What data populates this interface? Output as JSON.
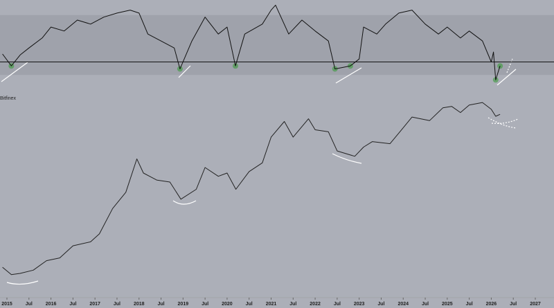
{
  "chart_data": [
    {
      "type": "line",
      "x": [
        2014.9,
        2015.1,
        2015.3,
        2015.5,
        2015.8,
        2016.0,
        2016.3,
        2016.6,
        2016.9,
        2017.2,
        2017.5,
        2017.8,
        2018.0,
        2018.2,
        2018.5,
        2018.8,
        2018.93,
        2019.2,
        2019.5,
        2019.8,
        2020.0,
        2020.19,
        2020.4,
        2020.8,
        2021.0,
        2021.1,
        2021.4,
        2021.7,
        2022.0,
        2022.3,
        2022.45,
        2022.8,
        2023.0,
        2023.1,
        2023.4,
        2023.6,
        2023.9,
        2024.2,
        2024.5,
        2024.8,
        2025.0,
        2025.3,
        2025.5,
        2025.8,
        2026.0,
        2026.05,
        2026.1,
        2026.2
      ],
      "values": [
        41,
        29,
        40,
        47,
        57,
        68,
        64,
        75,
        71,
        78,
        82,
        85,
        82,
        61,
        54,
        47,
        26,
        54,
        78,
        61,
        68,
        29,
        61,
        71,
        85,
        90,
        61,
        75,
        64,
        54,
        26,
        29,
        36,
        68,
        61,
        71,
        82,
        85,
        71,
        61,
        68,
        57,
        64,
        54,
        33,
        43,
        15,
        29
      ],
      "xlim": [
        2015,
        2027
      ],
      "ylim": [
        0,
        100
      ],
      "band": [
        20,
        80
      ],
      "hline": 33,
      "color": "#111111"
    },
    {
      "type": "line",
      "source_label": "Bitfinex",
      "log_scale": true,
      "x": [
        2014.9,
        2015.1,
        2015.3,
        2015.6,
        2015.9,
        2016.2,
        2016.5,
        2016.9,
        2017.1,
        2017.4,
        2017.7,
        2017.95,
        2018.1,
        2018.4,
        2018.7,
        2018.95,
        2019.3,
        2019.5,
        2019.8,
        2020.0,
        2020.2,
        2020.5,
        2020.8,
        2021.0,
        2021.3,
        2021.5,
        2021.85,
        2022.0,
        2022.3,
        2022.5,
        2022.9,
        2023.1,
        2023.3,
        2023.7,
        2023.95,
        2024.2,
        2024.6,
        2024.9,
        2025.1,
        2025.3,
        2025.5,
        2025.8,
        2026.0,
        2026.1,
        2026.2
      ],
      "values": [
        300,
        230,
        240,
        270,
        380,
        420,
        650,
        750,
        1000,
        2500,
        4500,
        15000,
        9000,
        7000,
        6500,
        3500,
        5000,
        11000,
        8000,
        9000,
        5000,
        9500,
        13000,
        33000,
        58000,
        33000,
        64000,
        43000,
        40000,
        20000,
        16500,
        23000,
        28000,
        26000,
        42000,
        68000,
        60000,
        95000,
        100000,
        80000,
        105000,
        115000,
        90000,
        70000,
        75000
      ],
      "xlim": [
        2015,
        2027
      ],
      "ylim": [
        100,
        200000
      ],
      "color": "#222222",
      "xticks": [
        2015,
        {
          "value": 2015.5,
          "label": "Jul"
        },
        2016,
        {
          "value": 2016.5,
          "label": "Jul"
        },
        2017,
        {
          "value": 2017.5,
          "label": "Jul"
        },
        2018,
        {
          "value": 2018.5,
          "label": "Jul"
        },
        2019,
        {
          "value": 2019.5,
          "label": "Jul"
        },
        2020,
        {
          "value": 2020.5,
          "label": "Jul"
        },
        2021,
        {
          "value": 2021.5,
          "label": "Jul"
        },
        2022,
        {
          "value": 2022.5,
          "label": "Jul"
        },
        2023,
        {
          "value": 2023.5,
          "label": "Jul"
        },
        2024,
        {
          "value": 2024.5,
          "label": "Jul"
        },
        2025,
        {
          "value": 2025.5,
          "label": "Jul"
        },
        2026,
        {
          "value": 2026.5,
          "label": "Jul"
        },
        2027
      ]
    }
  ]
}
